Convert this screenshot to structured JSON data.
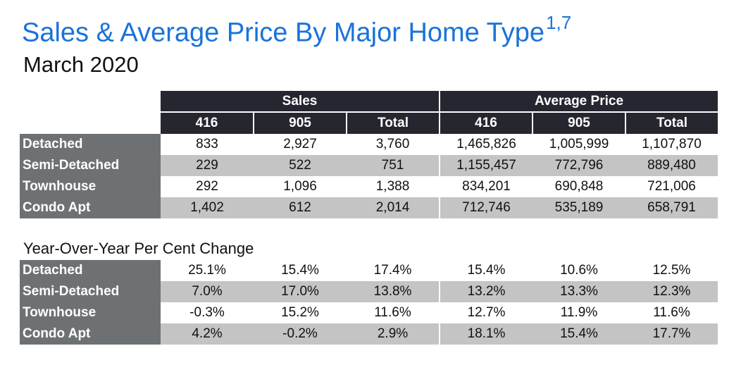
{
  "header": {
    "title": "Sales & Average Price By Major Home Type",
    "title_sup": "1,7",
    "subtitle": "March 2020"
  },
  "main_table": {
    "group_headers": [
      "Sales",
      "Average Price"
    ],
    "columns": [
      "416",
      "905",
      "Total",
      "416",
      "905",
      "Total"
    ],
    "rows": [
      {
        "label": "Detached",
        "values": [
          "833",
          "2,927",
          "3,760",
          "1,465,826",
          "1,005,999",
          "1,107,870"
        ]
      },
      {
        "label": "Semi-Detached",
        "values": [
          "229",
          "522",
          "751",
          "1,155,457",
          "772,796",
          "889,480"
        ]
      },
      {
        "label": "Townhouse",
        "values": [
          "292",
          "1,096",
          "1,388",
          "834,201",
          "690,848",
          "721,006"
        ]
      },
      {
        "label": "Condo Apt",
        "values": [
          "1,402",
          "612",
          "2,014",
          "712,746",
          "535,189",
          "658,791"
        ]
      }
    ]
  },
  "yoy_section": {
    "title": "Year-Over-Year Per Cent Change",
    "rows": [
      {
        "label": "Detached",
        "values": [
          "25.1%",
          "15.4%",
          "17.4%",
          "15.4%",
          "10.6%",
          "12.5%"
        ]
      },
      {
        "label": "Semi-Detached",
        "values": [
          "7.0%",
          "17.0%",
          "13.8%",
          "13.2%",
          "13.3%",
          "12.3%"
        ]
      },
      {
        "label": "Townhouse",
        "values": [
          "-0.3%",
          "15.2%",
          "11.6%",
          "12.7%",
          "11.9%",
          "11.6%"
        ]
      },
      {
        "label": "Condo Apt",
        "values": [
          "4.2%",
          "-0.2%",
          "2.9%",
          "18.1%",
          "15.4%",
          "17.7%"
        ]
      }
    ]
  },
  "colors": {
    "title": "#1a73d9",
    "header_bg": "#262630",
    "row_label_bg": "#6e7173",
    "shaded_row_bg": "#c4c4c4"
  }
}
